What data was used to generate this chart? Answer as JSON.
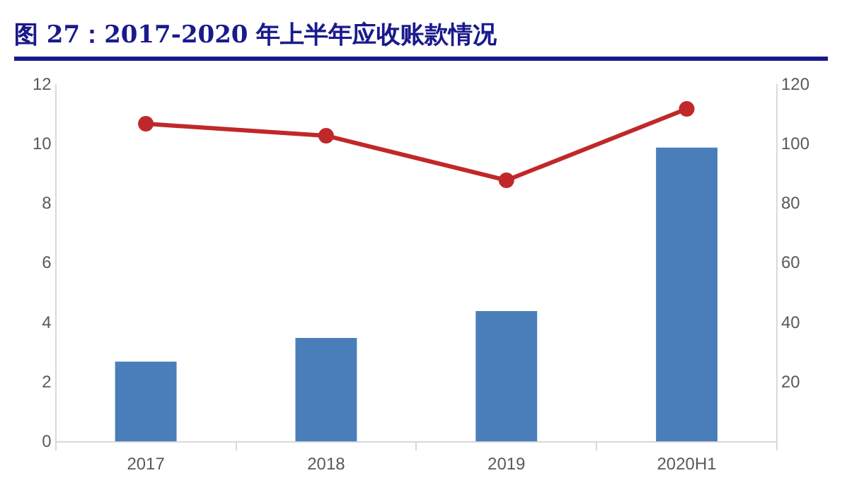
{
  "chart_data": {
    "type": "bar",
    "title": "图 27：2017-2020 年上半年应收账款情况",
    "categories": [
      "2017",
      "2018",
      "2019",
      "2020H1"
    ],
    "series": [
      {
        "color": "#4a7ebb",
        "values": [
          2.7,
          3.5,
          4.4,
          9.9
        ]
      },
      {
        "type": "line",
        "axis": "y2",
        "color": "#c0282a",
        "values": [
          107,
          103,
          88,
          112
        ]
      }
    ],
    "ylim": [
      0,
      12
    ],
    "yticks": [
      0,
      2,
      4,
      6,
      8,
      10,
      12
    ],
    "y2lim": [
      0,
      120
    ],
    "y2ticks": [
      20,
      40,
      60,
      80,
      100,
      120
    ],
    "grid": false,
    "legend": false,
    "marker": "circle",
    "line_style": "solid"
  }
}
